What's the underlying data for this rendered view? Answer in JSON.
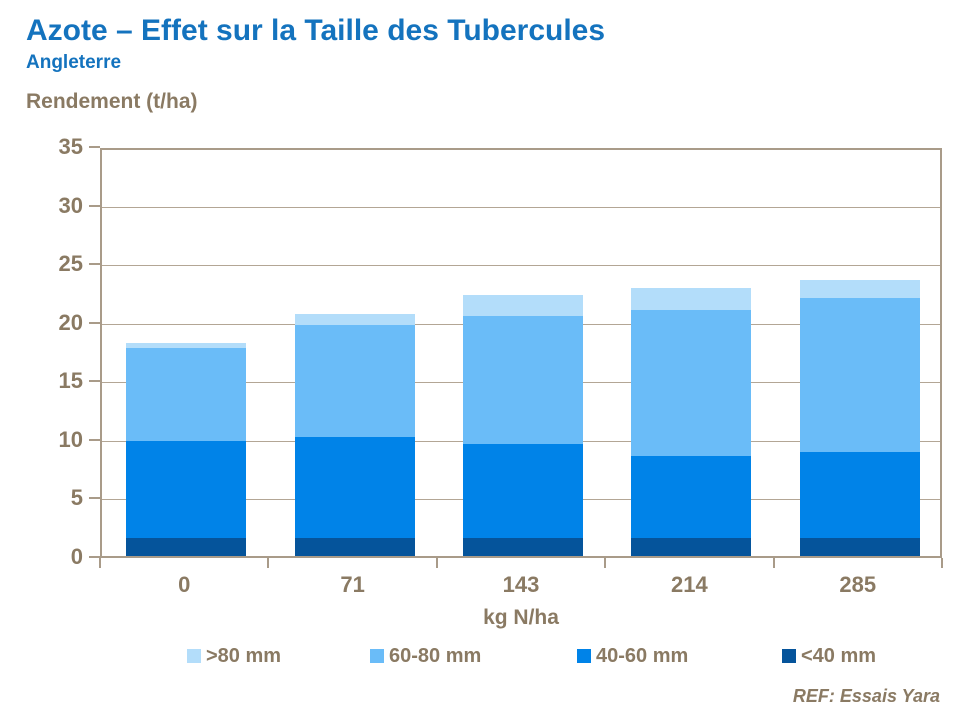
{
  "header": {
    "title": "Azote – Effet sur la Taille des Tubercules",
    "subtitle": "Angleterre"
  },
  "chart_data": {
    "type": "bar",
    "stacked": true,
    "ylabel": "Rendement (t/ha)",
    "xlabel": "kg N/ha",
    "categories": [
      "0",
      "71",
      "143",
      "214",
      "285"
    ],
    "series": [
      {
        "name": "<40 mm",
        "color": "#05549B",
        "values": [
          1.5,
          1.5,
          1.5,
          1.5,
          1.5
        ]
      },
      {
        "name": "40-60 mm",
        "color": "#0083E8",
        "values": [
          8.3,
          8.7,
          8.1,
          7.0,
          7.4
        ]
      },
      {
        "name": "60-80 mm",
        "color": "#6ABCF8",
        "values": [
          8.0,
          9.5,
          10.9,
          12.5,
          13.1
        ]
      },
      {
        "name": ">80 mm",
        "color": "#B3DDFA",
        "values": [
          0.4,
          1.0,
          1.8,
          1.9,
          1.6
        ]
      }
    ],
    "totals": [
      18.2,
      20.7,
      22.3,
      22.9,
      23.6
    ],
    "ylim": [
      0,
      35
    ],
    "ytick_step": 5,
    "ytick_labels": [
      "0",
      "5",
      "10",
      "15",
      "20",
      "25",
      "30",
      "35"
    ],
    "grid": "horizontal",
    "legend_position": "bottom",
    "legend_order": [
      ">80 mm",
      "60-80 mm",
      "40-60 mm",
      "<40 mm"
    ]
  },
  "footer": {
    "ref": "REF: Essais Yara"
  },
  "colors": {
    "title": "#1473BE",
    "axis_text": "#8A7A63",
    "grid_strong": "#A99B89",
    "grid_light": "#B3A695"
  }
}
